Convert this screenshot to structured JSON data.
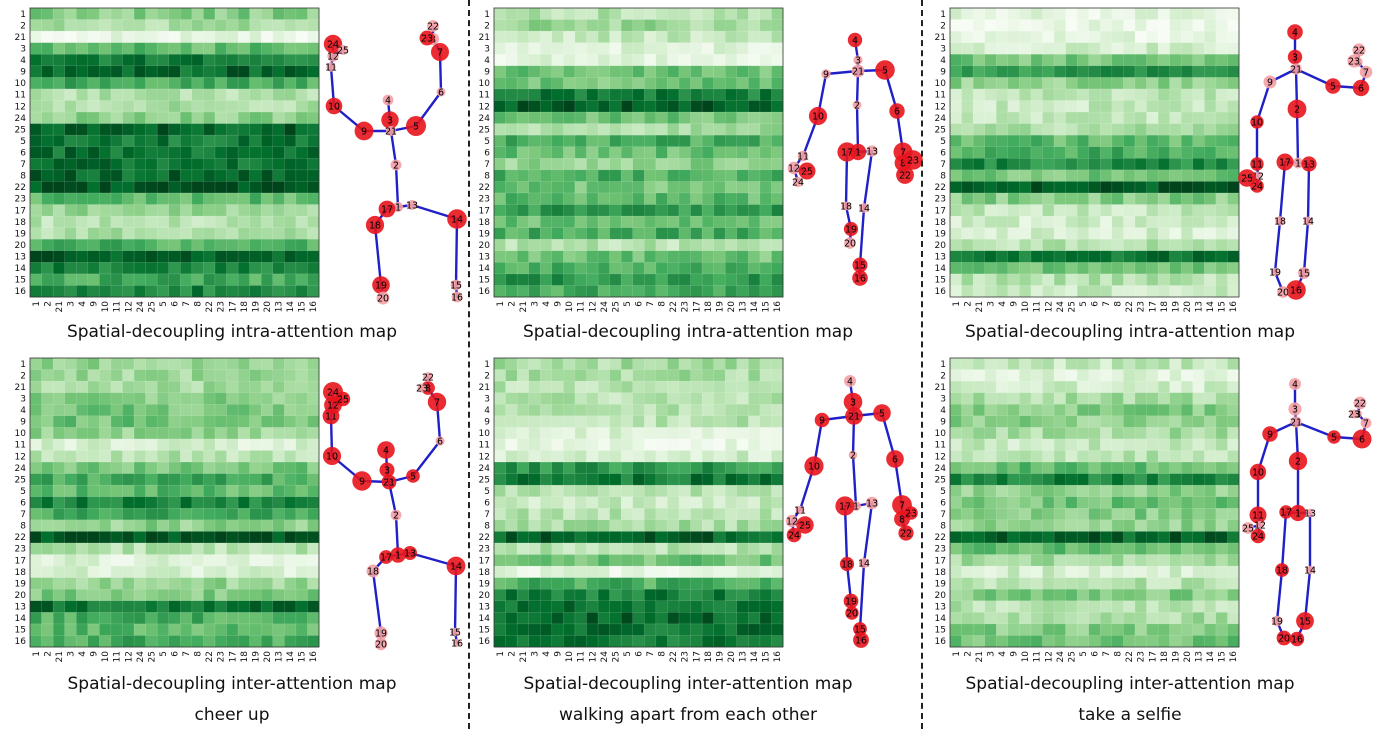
{
  "joint_order": [
    "1",
    "2",
    "21",
    "3",
    "4",
    "9",
    "10",
    "11",
    "12",
    "24",
    "25",
    "5",
    "6",
    "7",
    "8",
    "22",
    "23",
    "17",
    "18",
    "19",
    "20",
    "13",
    "14",
    "15",
    "16"
  ],
  "panels": [
    {
      "action": "cheer up",
      "intra": {
        "caption": "Spatial-decoupling intra-attention map",
        "seed": 11,
        "row_level": [
          0.45,
          0.35,
          0.08,
          0.55,
          0.82,
          0.88,
          0.62,
          0.32,
          0.34,
          0.42,
          0.9,
          0.82,
          0.85,
          0.86,
          0.88,
          0.97,
          0.55,
          0.38,
          0.3,
          0.35,
          0.6,
          0.92,
          0.78,
          0.62,
          0.78
        ]
      },
      "inter": {
        "caption": "Spatial-decoupling inter-attention map",
        "seed": 12,
        "row_level": [
          0.42,
          0.38,
          0.35,
          0.45,
          0.48,
          0.5,
          0.4,
          0.18,
          0.3,
          0.5,
          0.62,
          0.55,
          0.78,
          0.62,
          0.42,
          0.97,
          0.3,
          0.15,
          0.18,
          0.4,
          0.45,
          0.85,
          0.6,
          0.55,
          0.62
        ]
      }
    },
    {
      "action": "walking apart from each other",
      "intra": {
        "caption": "Spatial-decoupling intra-attention map",
        "seed": 21,
        "row_level": [
          0.3,
          0.38,
          0.25,
          0.15,
          0.12,
          0.5,
          0.5,
          0.8,
          0.92,
          0.5,
          0.35,
          0.62,
          0.52,
          0.42,
          0.6,
          0.5,
          0.55,
          0.7,
          0.5,
          0.62,
          0.3,
          0.5,
          0.62,
          0.7,
          0.62
        ]
      },
      "inter": {
        "caption": "Spatial-decoupling inter-attention map",
        "seed": 22,
        "row_level": [
          0.35,
          0.35,
          0.3,
          0.3,
          0.32,
          0.3,
          0.15,
          0.08,
          0.2,
          0.7,
          0.82,
          0.3,
          0.25,
          0.3,
          0.35,
          0.9,
          0.3,
          0.5,
          0.1,
          0.6,
          0.8,
          0.85,
          0.88,
          0.85,
          0.82
        ]
      }
    },
    {
      "action": "take a selfie",
      "intra": {
        "caption": "Spatial-decoupling intra-attention map",
        "seed": 31,
        "row_level": [
          0.12,
          0.08,
          0.1,
          0.2,
          0.5,
          0.7,
          0.42,
          0.28,
          0.25,
          0.25,
          0.32,
          0.55,
          0.6,
          0.75,
          0.5,
          0.95,
          0.45,
          0.25,
          0.2,
          0.18,
          0.3,
          0.82,
          0.5,
          0.3,
          0.25
        ]
      },
      "inter": {
        "caption": "Spatial-decoupling inter-attention map",
        "seed": 32,
        "row_level": [
          0.25,
          0.15,
          0.2,
          0.35,
          0.45,
          0.42,
          0.35,
          0.25,
          0.3,
          0.55,
          0.78,
          0.42,
          0.5,
          0.45,
          0.42,
          0.9,
          0.55,
          0.35,
          0.2,
          0.3,
          0.45,
          0.3,
          0.35,
          0.45,
          0.5
        ]
      }
    }
  ],
  "colors": {
    "low": "#f7fcf5",
    "high": "#00441b",
    "bone": "#2020c8",
    "joint_strong": "#e8141c",
    "joint_weak": "#f4a0a4",
    "divider": "#222222"
  }
}
